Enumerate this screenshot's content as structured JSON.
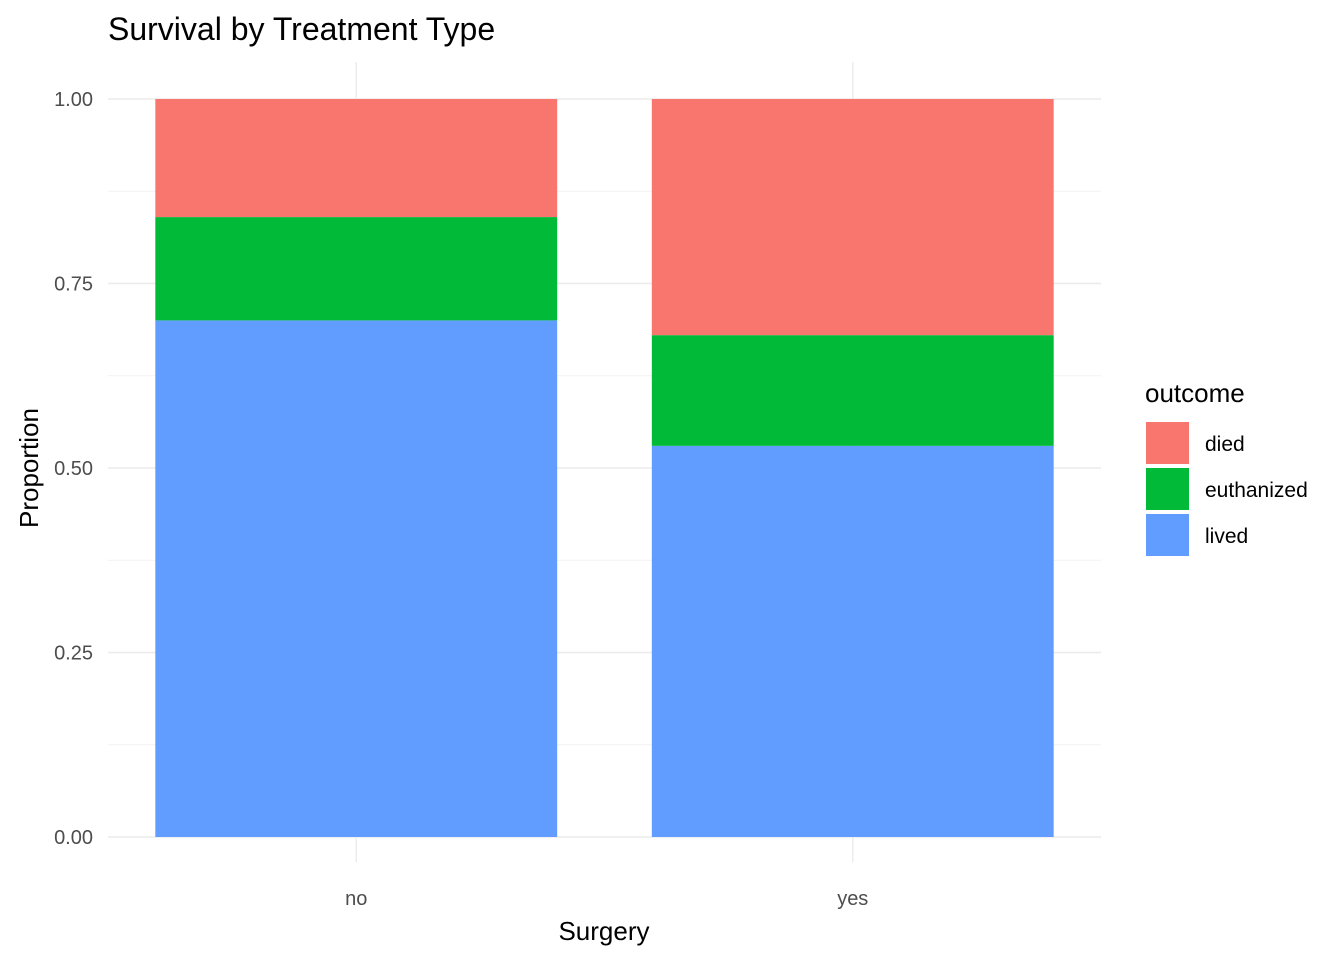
{
  "chart_data": {
    "type": "bar",
    "stacked": "fill",
    "title": "Survival by Treatment Type",
    "xlabel": "Surgery",
    "ylabel": "Proportion",
    "categories": [
      "no",
      "yes"
    ],
    "series": [
      {
        "name": "lived",
        "color": "#619CFF",
        "values": [
          0.7,
          0.53
        ]
      },
      {
        "name": "euthanized",
        "color": "#00BA38",
        "values": [
          0.14,
          0.15
        ]
      },
      {
        "name": "died",
        "color": "#F8766D",
        "values": [
          0.16,
          0.32
        ]
      }
    ],
    "ylim": [
      0,
      1
    ],
    "yticks": [
      "0.00",
      "0.25",
      "0.50",
      "0.75",
      "1.00"
    ],
    "ytick_values": [
      0,
      0.25,
      0.5,
      0.75,
      1.0
    ],
    "grid": true,
    "legend": {
      "title": "outcome",
      "position": "right",
      "entries": [
        "died",
        "euthanized",
        "lived"
      ]
    }
  }
}
